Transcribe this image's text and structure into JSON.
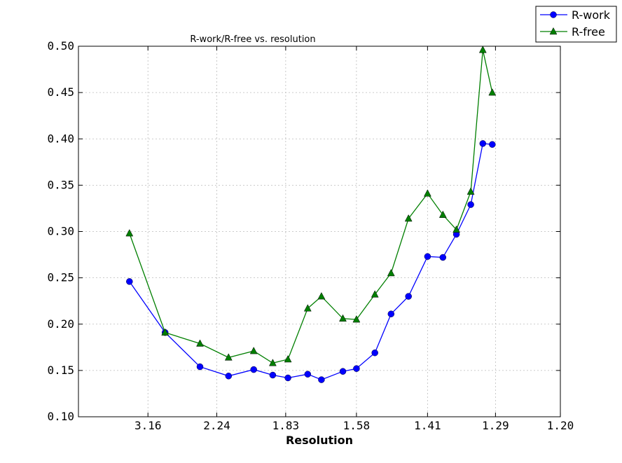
{
  "chart_data": {
    "type": "line",
    "title": "R-work/R-free vs. resolution",
    "xlabel": "Resolution",
    "ylabel": "",
    "x_axis_transform": "1/d^2",
    "xlim_inverse_sq": [
      0.0,
      0.6944
    ],
    "ylim": [
      0.1,
      0.5
    ],
    "yticks": [
      "0.10",
      "0.15",
      "0.20",
      "0.25",
      "0.30",
      "0.35",
      "0.40",
      "0.45",
      "0.50"
    ],
    "xticks": [
      "3.16",
      "2.24",
      "1.83",
      "1.58",
      "1.41",
      "1.29",
      "1.20"
    ],
    "grid": true,
    "legend_position": "top-right",
    "x_resolution": [
      3.69,
      2.83,
      2.39,
      2.15,
      1.99,
      1.89,
      1.82,
      1.74,
      1.69,
      1.62,
      1.58,
      1.53,
      1.49,
      1.45,
      1.41,
      1.38,
      1.355,
      1.33,
      1.31,
      1.295
    ],
    "series": [
      {
        "name": "R-work",
        "color": "#0000ff",
        "marker": "circle",
        "values": [
          0.246,
          0.191,
          0.154,
          0.144,
          0.151,
          0.145,
          0.142,
          0.146,
          0.14,
          0.149,
          0.152,
          0.169,
          0.211,
          0.23,
          0.273,
          0.272,
          0.297,
          0.329,
          0.395,
          0.394
        ]
      },
      {
        "name": "R-free",
        "color": "#007f00",
        "marker": "triangle",
        "values": [
          0.298,
          0.191,
          0.179,
          0.164,
          0.171,
          0.158,
          0.162,
          0.217,
          0.23,
          0.206,
          0.205,
          0.232,
          0.255,
          0.314,
          0.341,
          0.318,
          0.302,
          0.343,
          0.496,
          0.45
        ]
      }
    ]
  }
}
